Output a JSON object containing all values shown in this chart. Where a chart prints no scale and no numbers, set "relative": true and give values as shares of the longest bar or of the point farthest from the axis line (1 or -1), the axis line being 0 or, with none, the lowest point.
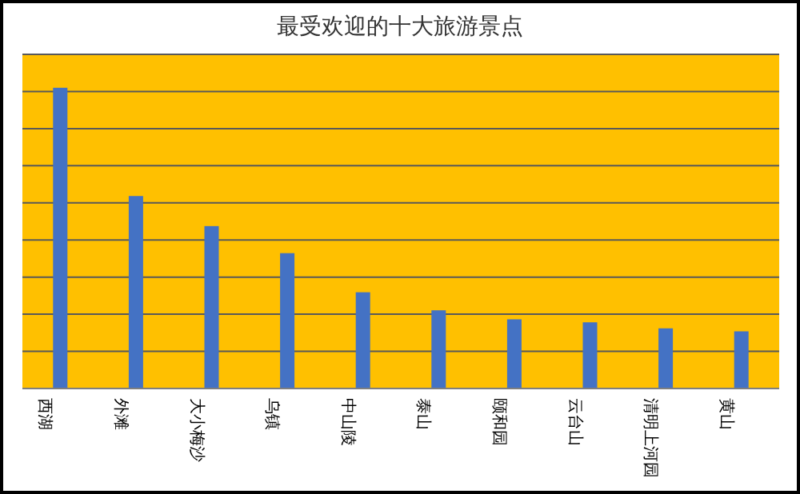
{
  "chart_data": {
    "type": "bar",
    "title": "最受欢迎的十大旅游景点",
    "relative": true,
    "grid": "y",
    "categories": [
      "西湖",
      "外滩",
      "大小梅沙",
      "乌镇",
      "中山陵",
      "泰山",
      "颐和园",
      "云台山",
      "清明上河园",
      "黄山"
    ],
    "series": [
      {
        "color": "#4472c4",
        "values": [
          1,
          0.64,
          0.54,
          0.45,
          0.32,
          0.26,
          0.23,
          0.22,
          0.2,
          0.19
        ]
      }
    ]
  }
}
